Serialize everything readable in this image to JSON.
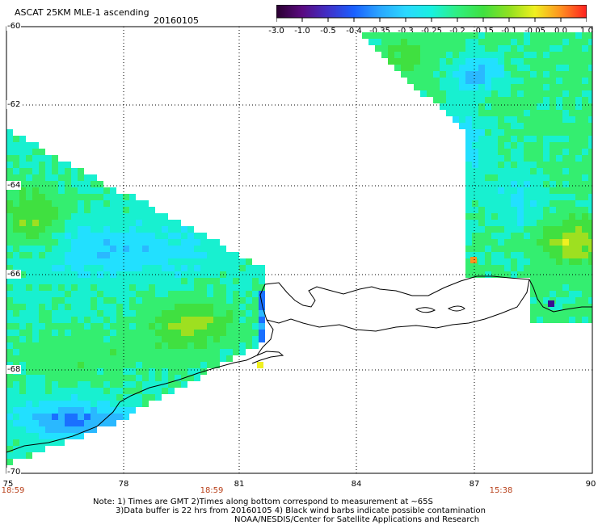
{
  "header": {
    "title": "ASCAT 25KM MLE-1 ascending",
    "date": "20160105"
  },
  "colorbar": {
    "labels": [
      "-3.0",
      "-1.0",
      "-0.5",
      "-0.4",
      "-0.35",
      "-0.3",
      "-0.25",
      "-0.2",
      "-0.15",
      "-0.1",
      "-0.05",
      "0.0",
      "1.0"
    ],
    "colors": [
      "#2a0030",
      "#5a0a80",
      "#4030c8",
      "#1a60ff",
      "#2aa6ff",
      "#2ad8ff",
      "#18f0e0",
      "#30ef80",
      "#40e040",
      "#90e020",
      "#f0f020",
      "#ff9020",
      "#ff2020"
    ]
  },
  "axes": {
    "y_labels": [
      "-60",
      "-62",
      "-64",
      "-66",
      "-68",
      "-70"
    ],
    "x_labels": [
      "75",
      "78",
      "81",
      "84",
      "87",
      "90"
    ],
    "time_labels": [
      "18:59",
      "18:59",
      "15:38"
    ]
  },
  "notes": {
    "line1": "Note: 1) Times are GMT 2)Times along bottom correspond to measurement at ~65S",
    "line2": "3)Data buffer is 22 hrs from 20160105 4) Black wind barbs indicate possible contamination",
    "line3": "NOAA/NESDIS/Center for Satellite Applications and Research"
  }
}
